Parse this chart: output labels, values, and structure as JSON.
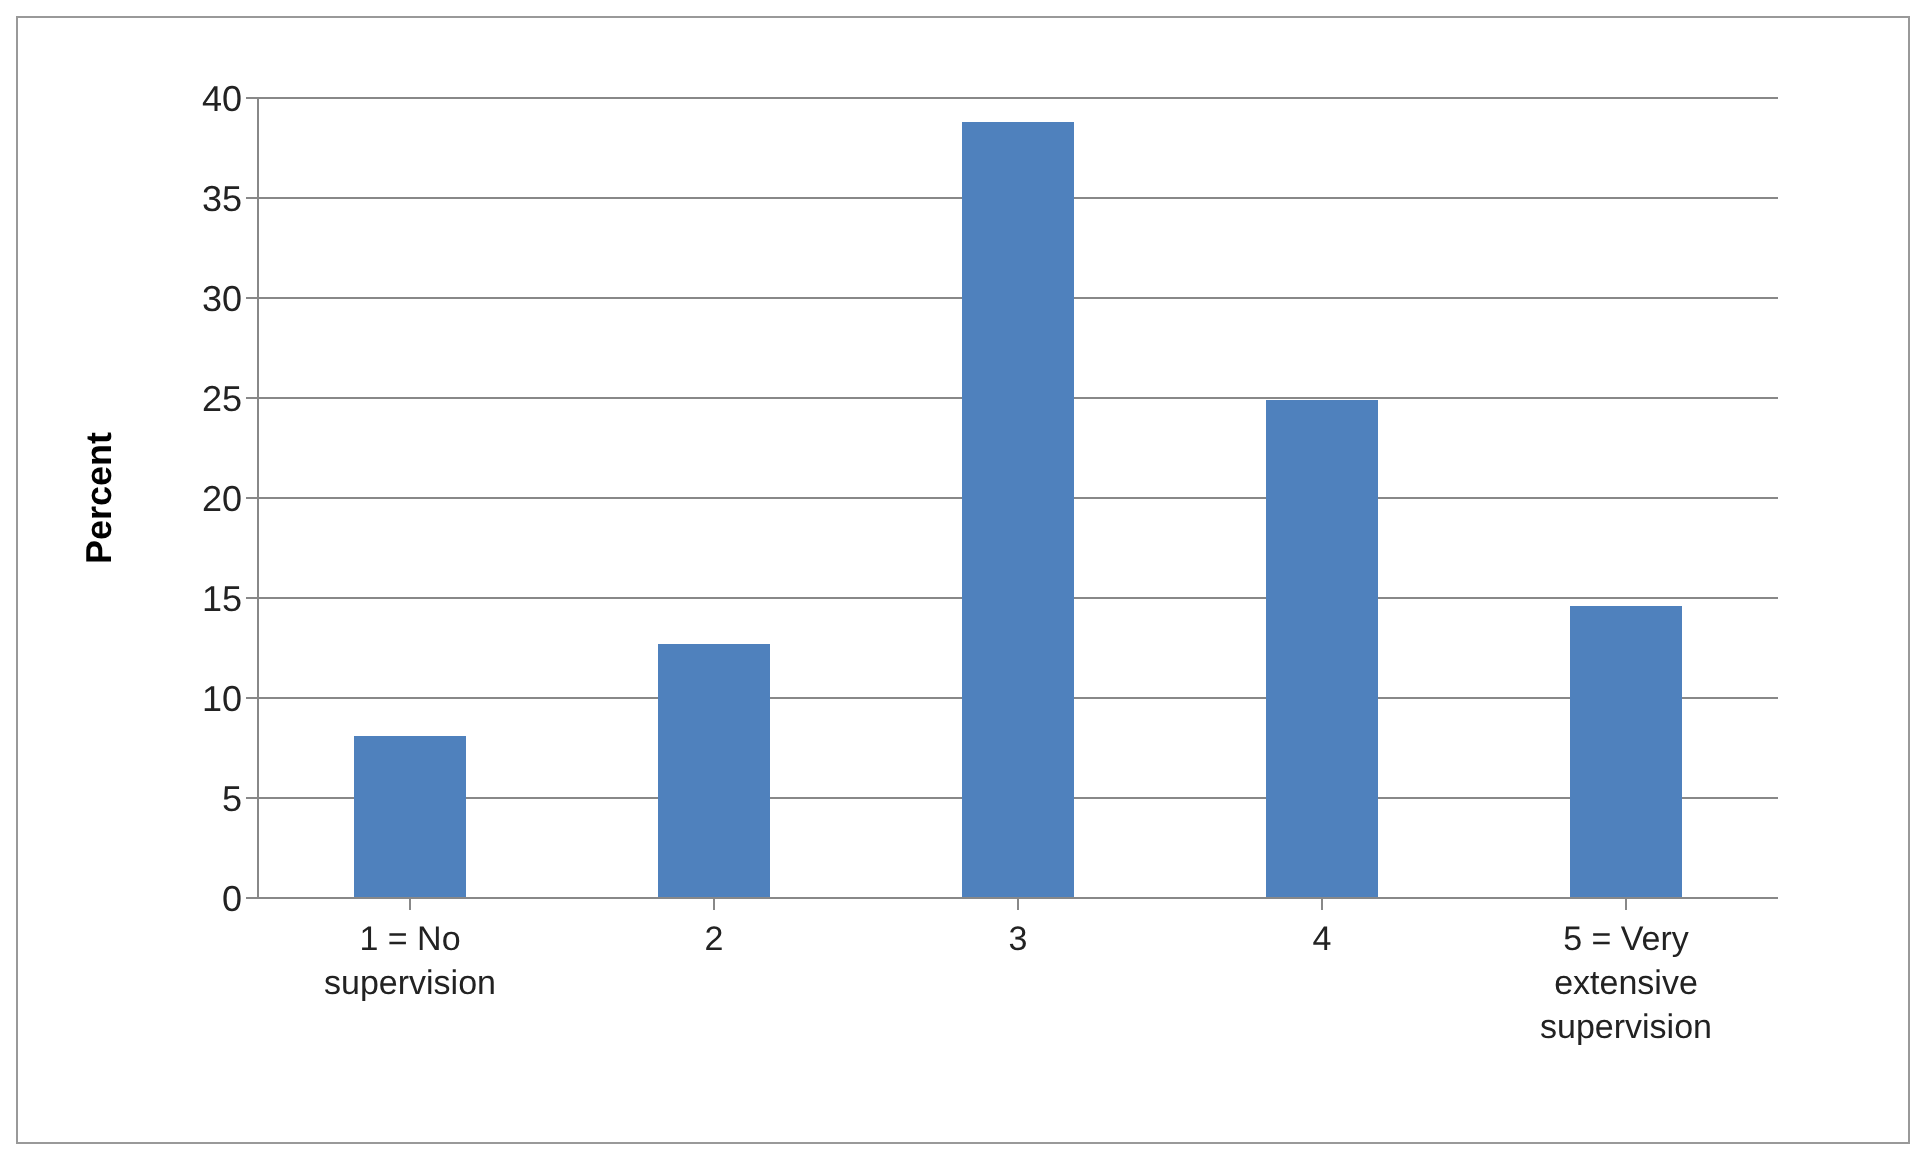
{
  "chart_data": {
    "type": "bar",
    "ylabel": "Percent",
    "categories": [
      "1 = No supervision",
      "2",
      "3",
      "4",
      "5 = Very extensive supervision"
    ],
    "values": [
      8.1,
      12.7,
      38.8,
      24.9,
      14.6
    ],
    "color": "#4f81bd",
    "ylim": [
      0,
      40
    ],
    "yticks": [
      0,
      5,
      10,
      15,
      20,
      25,
      30,
      35,
      40
    ],
    "grid": "y"
  }
}
